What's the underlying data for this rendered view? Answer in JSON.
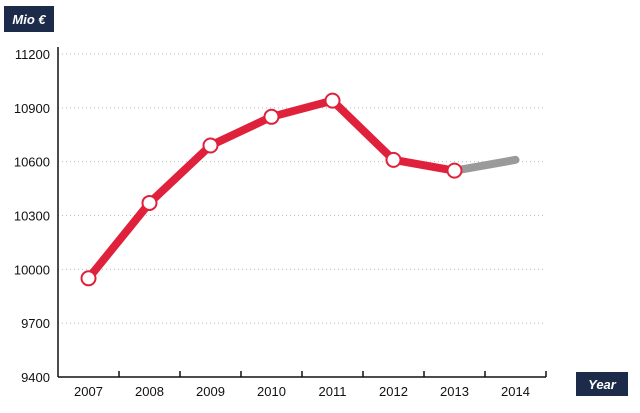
{
  "chart_data": {
    "type": "line",
    "ylabel": "Mio €",
    "xlabel": "Year",
    "categories": [
      "2007",
      "2008",
      "2009",
      "2010",
      "2011",
      "2012",
      "2013",
      "2014"
    ],
    "y_ticks": [
      "11200",
      "10900",
      "10600",
      "10300",
      "10000",
      "9700",
      "9400"
    ],
    "ylim": [
      9400,
      11200
    ],
    "grid": "horizontal-dotted",
    "series": [
      {
        "color": "#e0213c",
        "x": [
          "2007",
          "2008",
          "2009",
          "2010",
          "2011",
          "2012",
          "2013"
        ],
        "values": [
          9950,
          10370,
          10690,
          10850,
          10940,
          10610,
          10550
        ],
        "markers": true
      },
      {
        "color": "#9a9a9a",
        "x": [
          "2013",
          "2014"
        ],
        "values": [
          10550,
          10610
        ],
        "markers": false
      }
    ],
    "badge_color": "#1c2b4a",
    "axis_color": "#111111",
    "grid_color": "#bbbbbb"
  }
}
